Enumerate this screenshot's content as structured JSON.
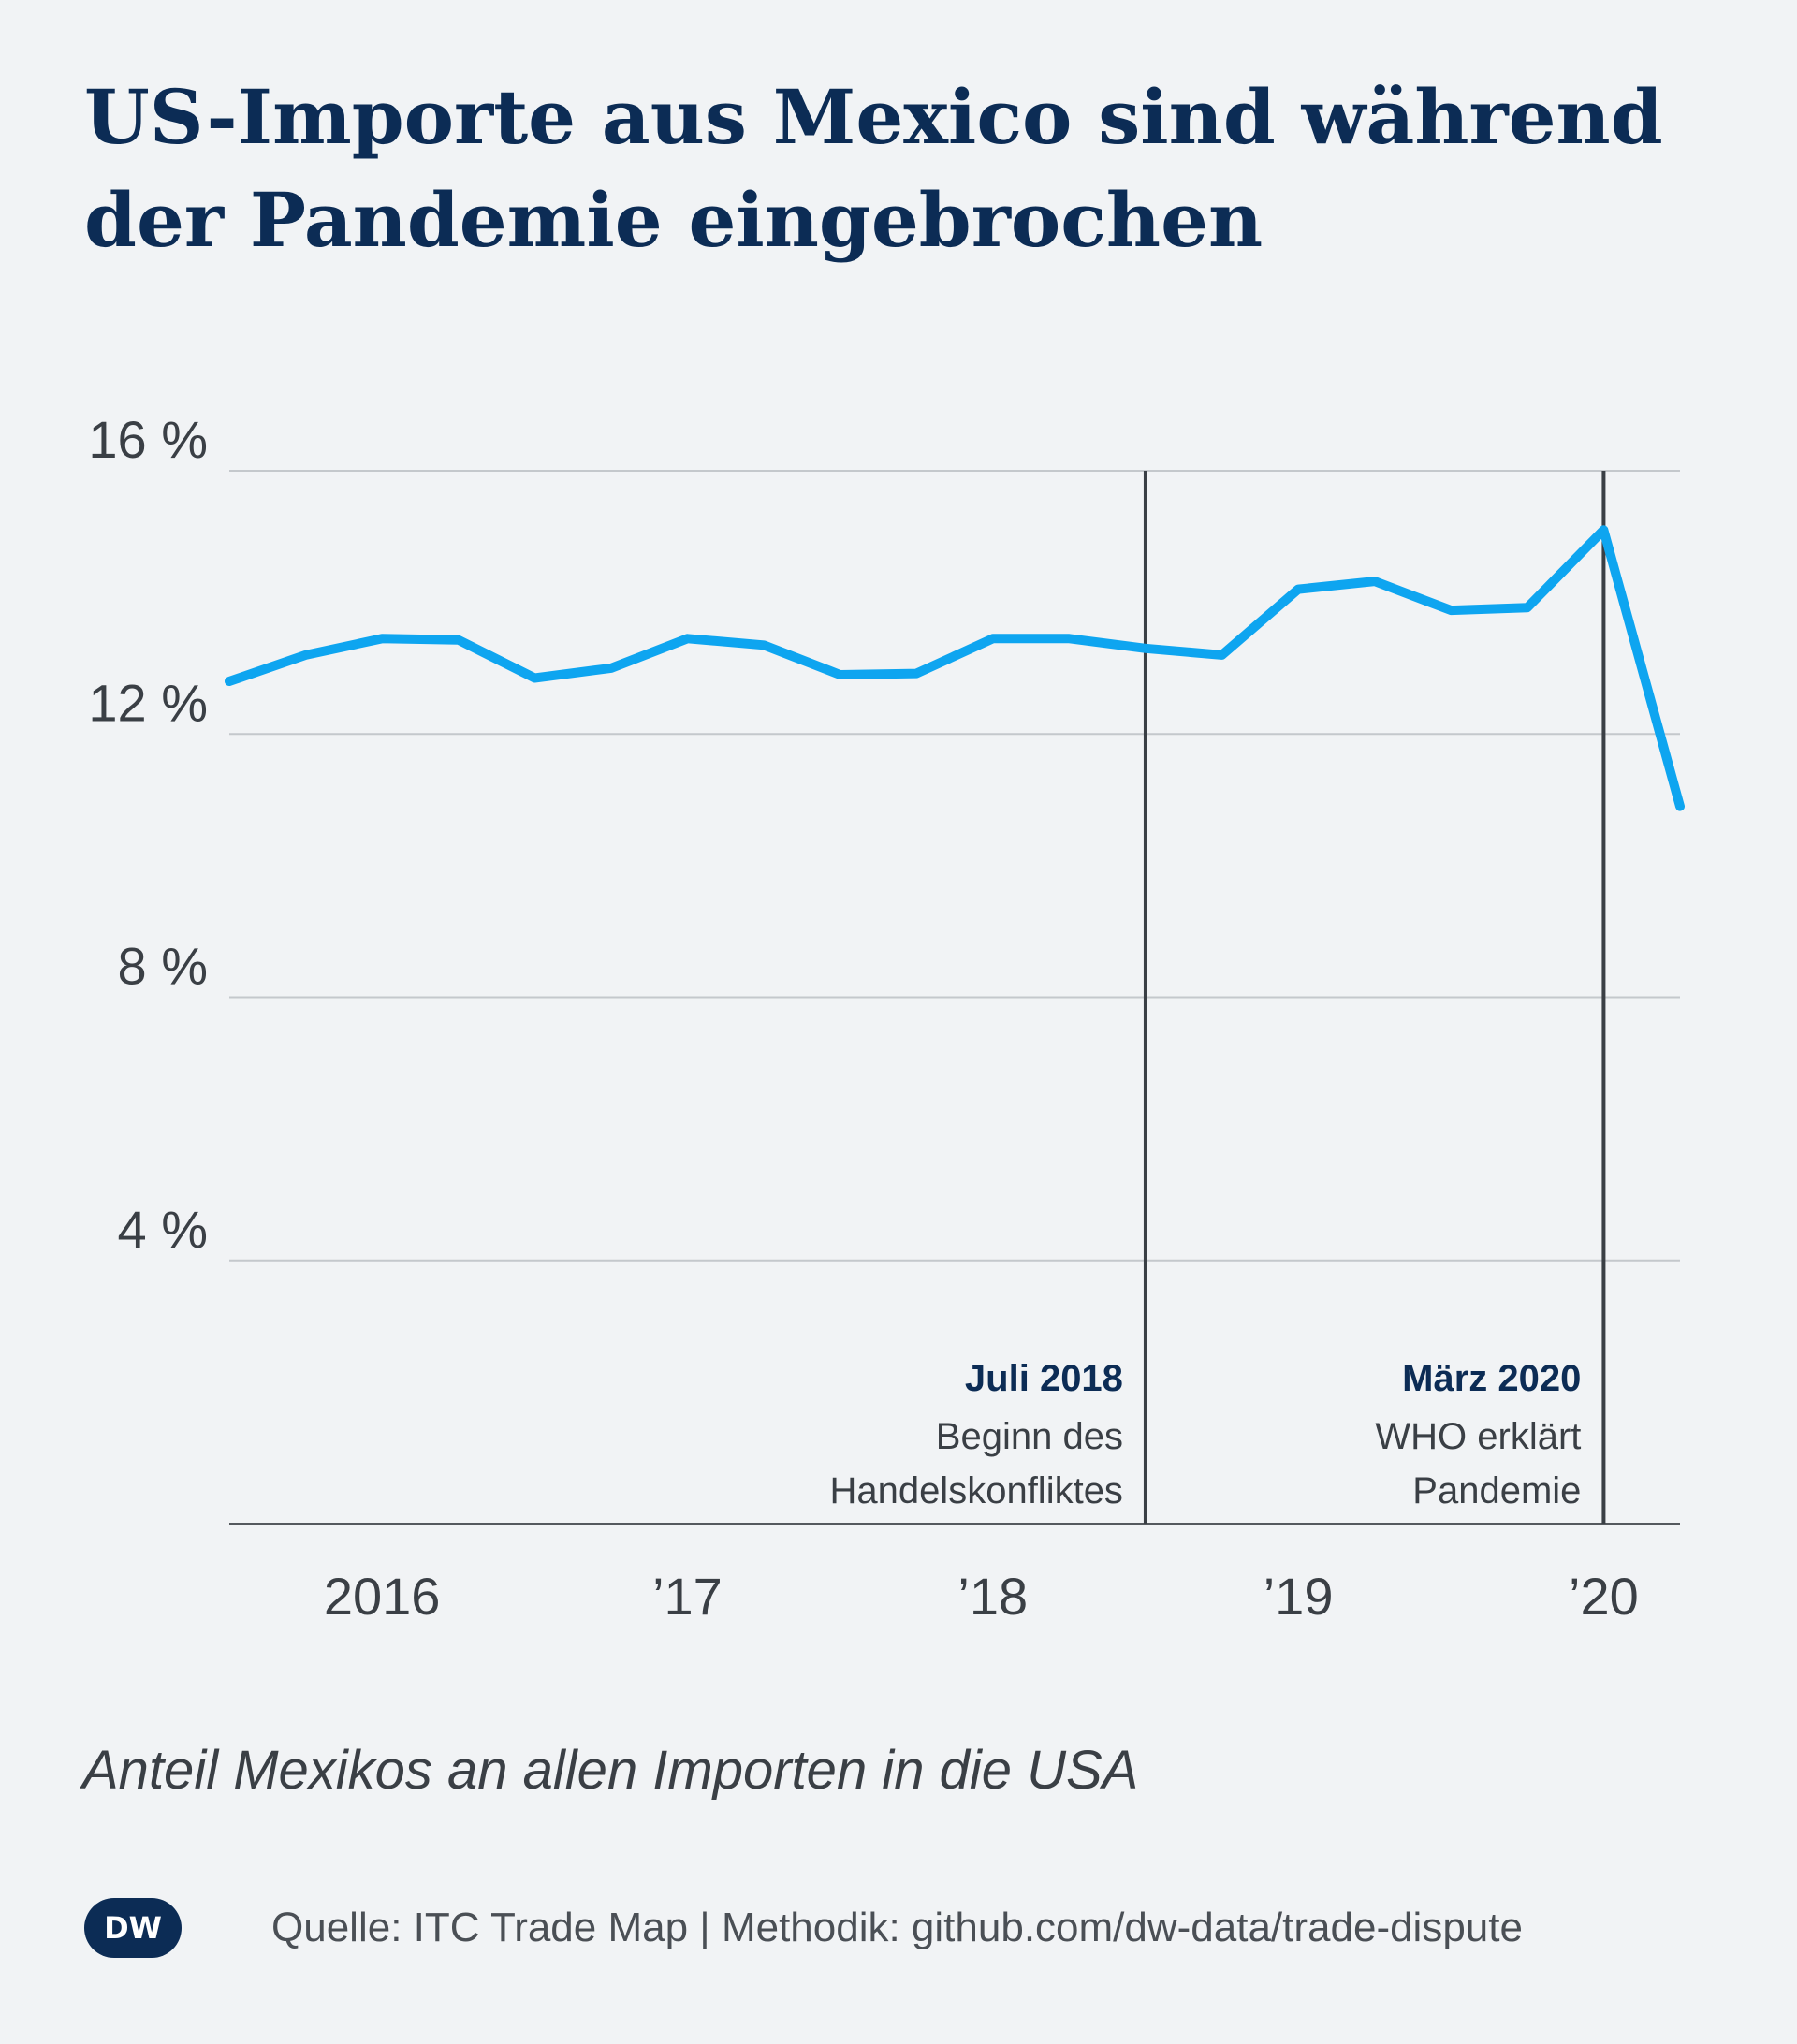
{
  "title": "US-Importe aus Mexico sind während der Pandemie eingebrochen",
  "subtitle": "Anteil Mexikos an allen Importen in die USA",
  "source": "Quelle: ITC Trade Map | Methodik: github.com/dw-data/trade-dispute",
  "logo": "DW",
  "colors": {
    "line": "#0ea5f0",
    "title": "#0c2c55",
    "background": "#f1f3f5",
    "marker": "#3a3f45"
  },
  "chart_data": {
    "type": "line",
    "title": "US-Importe aus Mexico sind während der Pandemie eingebrochen",
    "ylabel": "Anteil Mexikos an allen Importen in die USA",
    "ylim": [
      0,
      16
    ],
    "yticks": [
      {
        "value": 4,
        "label": "4 %"
      },
      {
        "value": 8,
        "label": "8 %"
      },
      {
        "value": 12,
        "label": "12 %"
      },
      {
        "value": 16,
        "label": "16 %"
      }
    ],
    "xlim": [
      "2015-07",
      "2020-04"
    ],
    "xticks": [
      {
        "value": "2016-01",
        "label": "2016"
      },
      {
        "value": "2017-01",
        "label": "’17"
      },
      {
        "value": "2018-01",
        "label": "’18"
      },
      {
        "value": "2019-01",
        "label": "’19"
      },
      {
        "value": "2020-01",
        "label": "’20"
      }
    ],
    "grid": true,
    "series": [
      {
        "x": [
          "2015-07",
          "2015-10",
          "2016-01",
          "2016-04",
          "2016-07",
          "2016-10",
          "2017-01",
          "2017-04",
          "2017-07",
          "2017-10",
          "2018-01",
          "2018-04",
          "2018-07",
          "2018-10",
          "2019-01",
          "2019-04",
          "2019-07",
          "2019-10",
          "2020-01",
          "2020-04"
        ],
        "values": [
          12.8,
          13.2,
          13.45,
          13.43,
          12.85,
          13.0,
          13.45,
          13.35,
          12.9,
          12.92,
          13.45,
          13.45,
          13.3,
          13.2,
          14.2,
          14.32,
          13.88,
          13.92,
          15.1,
          10.9
        ]
      }
    ],
    "annotations": [
      {
        "x": "2018-07",
        "title": "Juli 2018",
        "lines": [
          "Beginn des",
          "Handelskonfliktes"
        ]
      },
      {
        "x": "2020-01",
        "title": "März 2020",
        "lines": [
          "WHO erklärt",
          "Pandemie"
        ]
      }
    ]
  }
}
